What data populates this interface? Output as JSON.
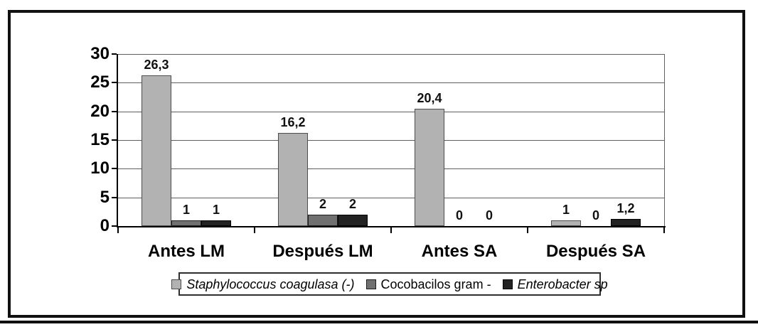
{
  "page": {
    "background": "#ffffff",
    "frame_color": "#101010"
  },
  "chart_data": {
    "type": "bar",
    "title": "",
    "xlabel": "",
    "ylabel": "",
    "categories": [
      "Antes LM",
      "Después LM",
      "Antes SA",
      "Después SA"
    ],
    "series": [
      {
        "name": "Staphylococcus coagulasa (-)",
        "name_italic": true,
        "color": "#b2b2b2",
        "border_color": "#4d4d4d",
        "values": [
          26.3,
          16.2,
          20.4,
          1
        ],
        "labels": [
          "26,3",
          "16,2",
          "20,4",
          "1"
        ]
      },
      {
        "name": "Cocobacilos gram -",
        "name_italic": false,
        "color": "#707070",
        "border_color": "#1c1c1c",
        "values": [
          1,
          2,
          0,
          0
        ],
        "labels": [
          "1",
          "2",
          "0",
          "0"
        ]
      },
      {
        "name": "Enterobacter sp",
        "name_italic": true,
        "color": "#222222",
        "border_color": "#000000",
        "values": [
          1,
          2,
          0,
          1.2
        ],
        "labels": [
          "1",
          "2",
          "0",
          "1,2"
        ]
      }
    ],
    "y_axis": {
      "min": 0,
      "max": 30,
      "step": 5,
      "tick_labels": [
        "0",
        "5",
        "10",
        "15",
        "20",
        "25",
        "30"
      ]
    },
    "grid": true,
    "gridline_color": "#5f5f5f",
    "legend_position": "bottom",
    "decimal_separator": ","
  }
}
